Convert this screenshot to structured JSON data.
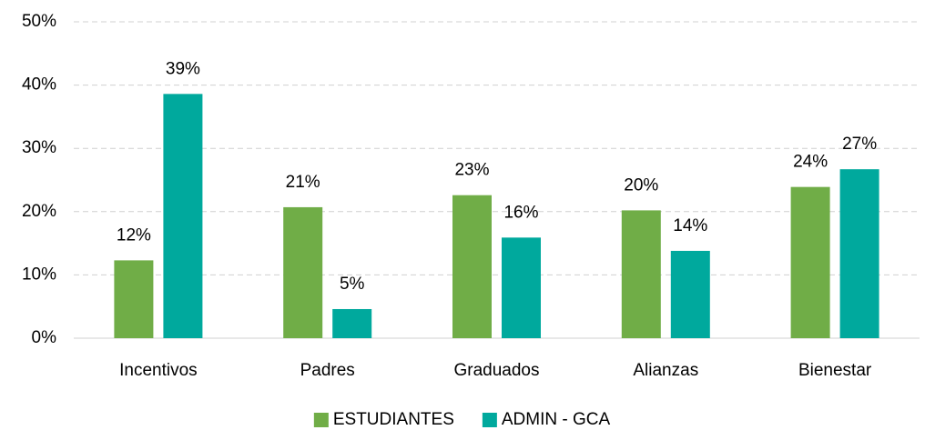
{
  "chart_data": {
    "type": "bar",
    "categories": [
      "Incentivos",
      "Padres",
      "Graduados",
      "Alianzas",
      "Bienestar"
    ],
    "series": [
      {
        "name": "ESTUDIANTES",
        "color": "#70ad47",
        "values": [
          12.3,
          20.7,
          22.6,
          20.2,
          23.9
        ],
        "value_labels": [
          "12%",
          "21%",
          "23%",
          "20%",
          "24%"
        ]
      },
      {
        "name": "ADMIN - GCA",
        "color": "#00a99d",
        "values": [
          38.6,
          4.6,
          15.9,
          13.8,
          26.7
        ],
        "value_labels": [
          "39%",
          "5%",
          "16%",
          "14%",
          "27%"
        ]
      }
    ],
    "ylim": [
      0,
      50
    ],
    "yticks": [
      {
        "value": 0,
        "label": "0%"
      },
      {
        "value": 10,
        "label": "10%"
      },
      {
        "value": 20,
        "label": "20%"
      },
      {
        "value": 30,
        "label": "30%"
      },
      {
        "value": 40,
        "label": "40%"
      },
      {
        "value": 50,
        "label": "50%"
      }
    ],
    "grid": true,
    "legend": "bottom"
  }
}
